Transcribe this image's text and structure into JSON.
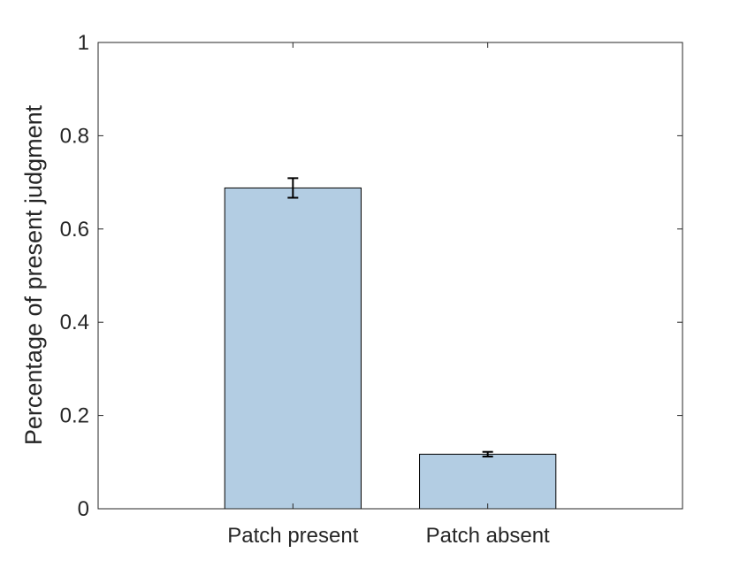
{
  "chart_data": {
    "type": "bar",
    "title": "",
    "xlabel": "",
    "ylabel": "Percentage of present judgment",
    "categories": [
      "Patch present",
      "Patch absent"
    ],
    "values": [
      0.688,
      0.117
    ],
    "errors": [
      0.021,
      0.005
    ],
    "ylim": [
      0,
      1
    ],
    "yticks": [
      0,
      0.2,
      0.4,
      0.6,
      0.8,
      1
    ],
    "ytick_labels": [
      "0",
      "0.2",
      "0.4",
      "0.6",
      "0.8",
      "1"
    ],
    "xlim": [
      0,
      3
    ],
    "grid": false,
    "legend": "none",
    "colors": {
      "bar_fill": "#b3cde3",
      "bar_stroke": "#000000",
      "axis": "#262626",
      "error_bar": "#000000"
    }
  }
}
